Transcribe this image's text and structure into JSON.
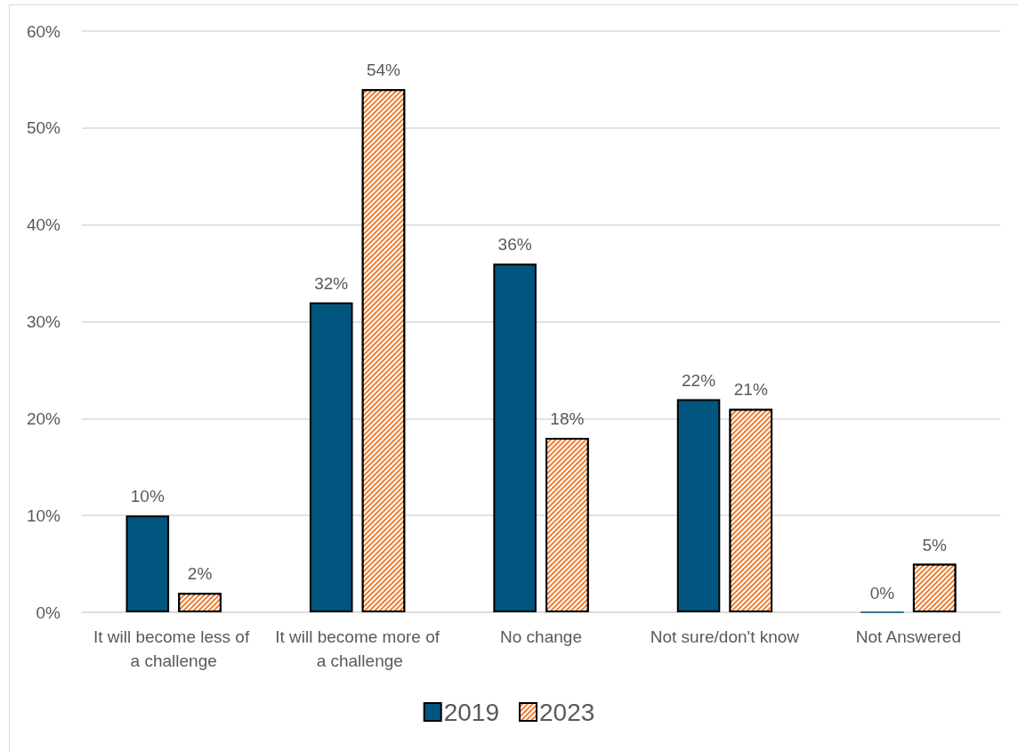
{
  "chart_data": {
    "type": "bar",
    "categories": [
      "It will become less of a challenge",
      "It will become more of a challenge",
      "No change",
      "Not sure/don't know",
      "Not Answered"
    ],
    "series": [
      {
        "name": "2019",
        "color": "#00567f",
        "values": [
          10,
          32,
          36,
          22,
          0
        ],
        "value_labels": [
          "10%",
          "32%",
          "36%",
          "22%",
          "0%"
        ]
      },
      {
        "name": "2023",
        "color": "#ee7d31",
        "values": [
          2,
          54,
          18,
          21,
          5
        ],
        "value_labels": [
          "2%",
          "54%",
          "18%",
          "21%",
          "5%"
        ]
      }
    ],
    "ylim": [
      0,
      60
    ],
    "yticks": [
      {
        "value": 0,
        "label": "0%"
      },
      {
        "value": 10,
        "label": "10%"
      },
      {
        "value": 20,
        "label": "20%"
      },
      {
        "value": 30,
        "label": "30%"
      },
      {
        "value": 40,
        "label": "40%"
      },
      {
        "value": 50,
        "label": "50%"
      },
      {
        "value": 60,
        "label": "60%"
      }
    ],
    "grid": "y",
    "legend": "bottom"
  }
}
